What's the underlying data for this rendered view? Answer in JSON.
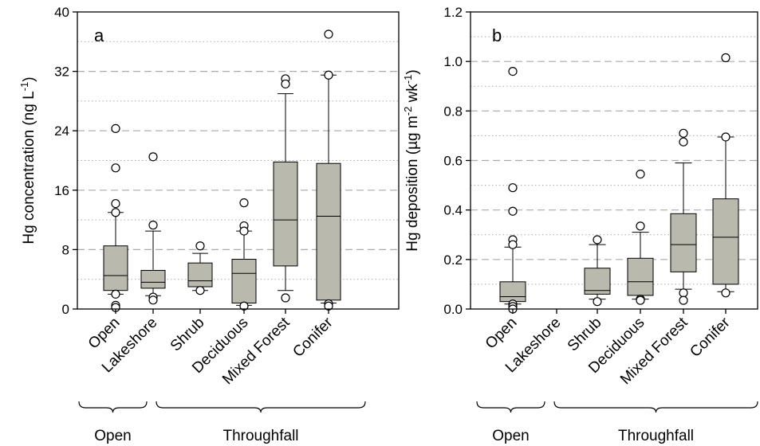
{
  "chart_data": [
    {
      "type": "box",
      "panel_label": "a",
      "ylabel": "Hg concentration (ng L-1)",
      "ylabel_parts": [
        "Hg concentration (ng L",
        "-1",
        ")"
      ],
      "ylim": [
        0,
        40
      ],
      "yticks": [
        "0",
        "8",
        "16",
        "24",
        "32",
        "40"
      ],
      "ytick_values": [
        0,
        8,
        16,
        24,
        32,
        40
      ],
      "grid": {
        "dashed_major": true,
        "dotted_minor": true
      },
      "categories": [
        "Open",
        "Lakeshore",
        "Shrub",
        "Deciduous",
        "Mixed Forest",
        "Conifer"
      ],
      "groups": [
        {
          "label": "Open",
          "categories": [
            "Open"
          ]
        },
        {
          "label": "Throughfall",
          "categories": [
            "Lakeshore",
            "Shrub",
            "Deciduous",
            "Mixed Forest",
            "Conifer"
          ]
        }
      ],
      "boxes": [
        {
          "category": "Open",
          "whisker_low": 2.0,
          "q1": 2.5,
          "median": 4.5,
          "q3": 8.5,
          "whisker_high": 13.0,
          "outliers": [
            24.3,
            19.0,
            14.2,
            13.0,
            2.0,
            0.5,
            0.2
          ]
        },
        {
          "category": "Lakeshore",
          "whisker_low": 1.8,
          "q1": 2.8,
          "median": 3.6,
          "q3": 5.2,
          "whisker_high": 10.5,
          "outliers": [
            20.5,
            11.3,
            1.6,
            1.2
          ]
        },
        {
          "category": "Shrub",
          "whisker_low": 2.5,
          "q1": 3.0,
          "median": 3.8,
          "q3": 6.2,
          "whisker_high": 7.5,
          "outliers": [
            8.5,
            2.5
          ]
        },
        {
          "category": "Deciduous",
          "whisker_low": 0.5,
          "q1": 0.8,
          "median": 4.8,
          "q3": 6.7,
          "whisker_high": 10.5,
          "outliers": [
            14.3,
            11.2,
            10.5,
            0.4
          ]
        },
        {
          "category": "Mixed Forest",
          "whisker_low": 2.5,
          "q1": 5.8,
          "median": 12.0,
          "q3": 19.8,
          "whisker_high": 29.0,
          "outliers": [
            31.0,
            30.3,
            1.5
          ]
        },
        {
          "category": "Conifer",
          "whisker_low": 0.8,
          "q1": 1.2,
          "median": 12.5,
          "q3": 19.6,
          "whisker_high": 31.5,
          "outliers": [
            37.0,
            31.5,
            0.7,
            0.4
          ]
        }
      ]
    },
    {
      "type": "box",
      "panel_label": "b",
      "ylabel": "Hg deposition (µg m-2 wk-1)",
      "ylabel_parts": [
        "Hg deposition (µg m",
        "-2",
        " wk",
        "-1",
        ")"
      ],
      "ylim": [
        0,
        1.2
      ],
      "yticks": [
        "0.0",
        "0.2",
        "0.4",
        "0.6",
        "0.8",
        "1.0",
        "1.2"
      ],
      "ytick_values": [
        0,
        0.2,
        0.4,
        0.6,
        0.8,
        1.0,
        1.2
      ],
      "grid": {
        "dashed_major": true,
        "dotted_minor": true
      },
      "categories": [
        "Open",
        "Lakeshore",
        "Shrub",
        "Deciduous",
        "Mixed Forest",
        "Conifer"
      ],
      "groups": [
        {
          "label": "Open",
          "categories": [
            "Open"
          ]
        },
        {
          "label": "Throughfall",
          "categories": [
            "Lakeshore",
            "Shrub",
            "Deciduous",
            "Mixed Forest",
            "Conifer"
          ]
        }
      ],
      "boxes": [
        {
          "category": "Open",
          "whisker_low": 0.02,
          "q1": 0.03,
          "median": 0.05,
          "q3": 0.11,
          "whisker_high": 0.25,
          "outliers": [
            0.96,
            0.49,
            0.395,
            0.28,
            0.26,
            0.02,
            0.01,
            0.0
          ]
        },
        {
          "category": "Lakeshore",
          "whisker_low": null,
          "q1": null,
          "median": null,
          "q3": null,
          "whisker_high": null,
          "outliers": []
        },
        {
          "category": "Shrub",
          "whisker_low": 0.04,
          "q1": 0.06,
          "median": 0.075,
          "q3": 0.165,
          "whisker_high": 0.26,
          "outliers": [
            0.28,
            0.03
          ]
        },
        {
          "category": "Deciduous",
          "whisker_low": 0.04,
          "q1": 0.055,
          "median": 0.11,
          "q3": 0.205,
          "whisker_high": 0.31,
          "outliers": [
            0.545,
            0.335,
            0.04,
            0.035
          ]
        },
        {
          "category": "Mixed Forest",
          "whisker_low": 0.08,
          "q1": 0.15,
          "median": 0.26,
          "q3": 0.385,
          "whisker_high": 0.59,
          "outliers": [
            0.71,
            0.675,
            0.065,
            0.035
          ]
        },
        {
          "category": "Conifer",
          "whisker_low": 0.07,
          "q1": 0.1,
          "median": 0.29,
          "q3": 0.445,
          "whisker_high": 0.695,
          "outliers": [
            1.015,
            0.695,
            0.065
          ]
        }
      ]
    }
  ],
  "colors": {
    "box_fill": "#b9b9ae",
    "grid": "#aaaaaa",
    "axis": "#000000"
  }
}
